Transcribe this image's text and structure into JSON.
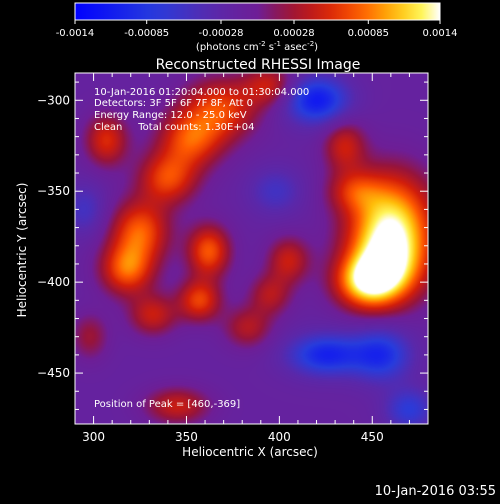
{
  "chart_data": {
    "type": "heatmap",
    "title": "Reconstructed RHESSI Image",
    "xlabel": "Heliocentric X (arcsec)",
    "ylabel": "Heliocentric Y (arcsec)",
    "xlim": [
      290,
      480
    ],
    "ylim": [
      -478,
      -285
    ],
    "xticks": [
      300,
      350,
      400,
      450
    ],
    "yticks": [
      -300,
      -350,
      -400,
      -450
    ],
    "colorbar": {
      "range": [
        -0.0014,
        0.0014
      ],
      "ticks": [
        "-0.0014",
        "-0.00085",
        "-0.00028",
        "0.00028",
        "0.00085",
        "0.0014"
      ],
      "unit_text": "(photons cm",
      "unit_sup1": "-2",
      "unit_mid": " s",
      "unit_sup2": "-1",
      "unit_mid2": " asec",
      "unit_sup3": "-2",
      "unit_end": ")"
    },
    "info_lines": [
      "10-Jan-2016 01:20:04.000 to 01:30:04.000",
      "Detectors: 3F 5F 6F 7F 8F, Att 0",
      "Energy Range: 12.0 - 25.0 keV",
      "Clean     Total counts: 1.30E+04"
    ],
    "peak_text": "Position of Peak = [460,-369]",
    "timestamp": "10-Jan-2016 03:55",
    "sources": [
      {
        "x": 460,
        "y": -369,
        "value": 0.0014,
        "sx": 16,
        "sy": 20
      },
      {
        "x": 447,
        "y": -400,
        "value": 0.0011,
        "sx": 12,
        "sy": 10
      },
      {
        "x": 458,
        "y": -392,
        "value": 0.0009,
        "sx": 14,
        "sy": 14
      },
      {
        "x": 440,
        "y": -350,
        "value": 0.0005,
        "sx": 10,
        "sy": 8
      },
      {
        "x": 435,
        "y": -325,
        "value": 0.0006,
        "sx": 8,
        "sy": 10
      },
      {
        "x": 368,
        "y": -305,
        "value": 0.0008,
        "sx": 14,
        "sy": 12
      },
      {
        "x": 352,
        "y": -322,
        "value": 0.0008,
        "sx": 12,
        "sy": 11
      },
      {
        "x": 340,
        "y": -343,
        "value": 0.0008,
        "sx": 11,
        "sy": 10
      },
      {
        "x": 325,
        "y": -372,
        "value": 0.0009,
        "sx": 11,
        "sy": 12
      },
      {
        "x": 318,
        "y": -393,
        "value": 0.0009,
        "sx": 10,
        "sy": 10
      },
      {
        "x": 362,
        "y": -383,
        "value": 0.0009,
        "sx": 8,
        "sy": 10
      },
      {
        "x": 357,
        "y": -410,
        "value": 0.0008,
        "sx": 8,
        "sy": 8
      },
      {
        "x": 332,
        "y": -418,
        "value": 0.0006,
        "sx": 9,
        "sy": 8
      },
      {
        "x": 307,
        "y": -322,
        "value": 0.0007,
        "sx": 8,
        "sy": 10
      },
      {
        "x": 395,
        "y": -292,
        "value": 0.0006,
        "sx": 10,
        "sy": 8
      },
      {
        "x": 405,
        "y": -388,
        "value": 0.0006,
        "sx": 8,
        "sy": 9
      },
      {
        "x": 395,
        "y": -407,
        "value": 0.0005,
        "sx": 8,
        "sy": 8
      },
      {
        "x": 383,
        "y": -425,
        "value": 0.0005,
        "sx": 9,
        "sy": 8
      },
      {
        "x": 345,
        "y": -468,
        "value": 0.0006,
        "sx": 12,
        "sy": 7
      },
      {
        "x": 298,
        "y": -430,
        "value": 0.0004,
        "sx": 7,
        "sy": 9
      },
      {
        "x": 420,
        "y": -300,
        "value": -0.001,
        "sx": 12,
        "sy": 9
      },
      {
        "x": 425,
        "y": -440,
        "value": -0.0009,
        "sx": 14,
        "sy": 8
      },
      {
        "x": 455,
        "y": -440,
        "value": -0.0008,
        "sx": 11,
        "sy": 10
      },
      {
        "x": 398,
        "y": -350,
        "value": -0.0004,
        "sx": 10,
        "sy": 9
      },
      {
        "x": 295,
        "y": -360,
        "value": -0.0004,
        "sx": 8,
        "sy": 10
      },
      {
        "x": 470,
        "y": -470,
        "value": -0.0006,
        "sx": 9,
        "sy": 8
      }
    ],
    "background": -0.00015
  }
}
